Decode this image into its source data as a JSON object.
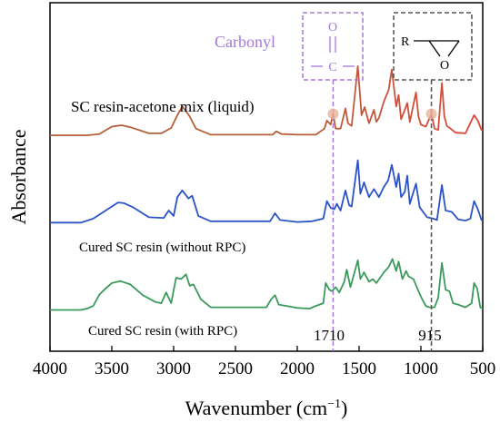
{
  "chart_data": {
    "type": "line",
    "xlabel": "Wavenumber (cm",
    "xlabel_sup": "−1",
    "xlabel_close": ")",
    "ylabel": "Absorbance",
    "xlim": [
      4000,
      500
    ],
    "x_ticks": [
      "4000",
      "3500",
      "3000",
      "2500",
      "2000",
      "1500",
      "1000",
      "500"
    ],
    "grid": false,
    "series": [
      {
        "name": "SC resin-acetone mix (liquid)",
        "color": "#b45f3a",
        "color_end": "#e0463b",
        "offset": 2.6,
        "points": [
          [
            4000,
            0.02
          ],
          [
            3700,
            0.02
          ],
          [
            3600,
            0.04
          ],
          [
            3500,
            0.15
          ],
          [
            3420,
            0.17
          ],
          [
            3350,
            0.14
          ],
          [
            3200,
            0.05
          ],
          [
            3100,
            0.05
          ],
          [
            3020,
            0.13
          ],
          [
            2970,
            0.32
          ],
          [
            2930,
            0.45
          ],
          [
            2900,
            0.38
          ],
          [
            2870,
            0.3
          ],
          [
            2820,
            0.12
          ],
          [
            2700,
            0.03
          ],
          [
            2200,
            0.03
          ],
          [
            2170,
            0.08
          ],
          [
            2130,
            0.04
          ],
          [
            2000,
            0.03
          ],
          [
            1850,
            0.03
          ],
          [
            1780,
            0.12
          ],
          [
            1760,
            0.24
          ],
          [
            1730,
            0.18
          ],
          [
            1710,
            0.34
          ],
          [
            1690,
            0.12
          ],
          [
            1650,
            0.12
          ],
          [
            1610,
            0.42
          ],
          [
            1590,
            0.2
          ],
          [
            1560,
            0.16
          ],
          [
            1510,
            1.05
          ],
          [
            1480,
            0.32
          ],
          [
            1455,
            0.44
          ],
          [
            1420,
            0.2
          ],
          [
            1380,
            0.4
          ],
          [
            1360,
            0.22
          ],
          [
            1340,
            0.28
          ],
          [
            1300,
            0.52
          ],
          [
            1260,
            0.7
          ],
          [
            1235,
            1.0
          ],
          [
            1200,
            0.45
          ],
          [
            1180,
            0.62
          ],
          [
            1160,
            0.26
          ],
          [
            1130,
            0.4
          ],
          [
            1110,
            0.5
          ],
          [
            1090,
            0.22
          ],
          [
            1040,
            0.66
          ],
          [
            1020,
            0.3
          ],
          [
            1000,
            0.18
          ],
          [
            960,
            0.15
          ],
          [
            915,
            0.34
          ],
          [
            890,
            0.12
          ],
          [
            860,
            0.1
          ],
          [
            830,
            0.8
          ],
          [
            810,
            0.3
          ],
          [
            790,
            0.16
          ],
          [
            760,
            0.12
          ],
          [
            720,
            0.06
          ],
          [
            640,
            0.05
          ],
          [
            570,
            0.32
          ],
          [
            540,
            0.24
          ],
          [
            510,
            0.1
          ],
          [
            500,
            0.1
          ]
        ]
      },
      {
        "name": "Cured SC resin (without RPC)",
        "color": "#2b53c9",
        "offset": 1.3,
        "points": [
          [
            4000,
            0.02
          ],
          [
            3750,
            0.02
          ],
          [
            3650,
            0.08
          ],
          [
            3550,
            0.2
          ],
          [
            3450,
            0.32
          ],
          [
            3400,
            0.31
          ],
          [
            3330,
            0.25
          ],
          [
            3200,
            0.1
          ],
          [
            3080,
            0.09
          ],
          [
            3040,
            0.2
          ],
          [
            3000,
            0.12
          ],
          [
            2970,
            0.4
          ],
          [
            2930,
            0.5
          ],
          [
            2880,
            0.38
          ],
          [
            2850,
            0.42
          ],
          [
            2800,
            0.12
          ],
          [
            2700,
            0.04
          ],
          [
            2220,
            0.04
          ],
          [
            2180,
            0.16
          ],
          [
            2140,
            0.06
          ],
          [
            2000,
            0.03
          ],
          [
            1880,
            0.04
          ],
          [
            1790,
            0.08
          ],
          [
            1760,
            0.34
          ],
          [
            1730,
            0.24
          ],
          [
            1700,
            0.22
          ],
          [
            1680,
            0.3
          ],
          [
            1650,
            0.2
          ],
          [
            1610,
            0.5
          ],
          [
            1580,
            0.28
          ],
          [
            1560,
            0.26
          ],
          [
            1510,
            0.95
          ],
          [
            1490,
            0.45
          ],
          [
            1460,
            0.62
          ],
          [
            1420,
            0.4
          ],
          [
            1380,
            0.52
          ],
          [
            1340,
            0.4
          ],
          [
            1300,
            0.55
          ],
          [
            1265,
            0.65
          ],
          [
            1235,
            0.88
          ],
          [
            1200,
            0.55
          ],
          [
            1180,
            0.75
          ],
          [
            1160,
            0.4
          ],
          [
            1130,
            0.48
          ],
          [
            1110,
            0.72
          ],
          [
            1090,
            0.3
          ],
          [
            1040,
            0.6
          ],
          [
            1010,
            0.25
          ],
          [
            950,
            0.1
          ],
          [
            900,
            0.08
          ],
          [
            870,
            0.06
          ],
          [
            830,
            0.58
          ],
          [
            800,
            0.2
          ],
          [
            750,
            0.18
          ],
          [
            700,
            0.07
          ],
          [
            640,
            0.05
          ],
          [
            600,
            0.08
          ],
          [
            570,
            0.34
          ],
          [
            540,
            0.22
          ],
          [
            510,
            0.06
          ],
          [
            500,
            0.06
          ]
        ]
      },
      {
        "name": "Cured SC resin (with RPC)",
        "color": "#3a9a5c",
        "offset": 0.0,
        "points": [
          [
            4000,
            0.02
          ],
          [
            3750,
            0.02
          ],
          [
            3700,
            0.04
          ],
          [
            3650,
            0.08
          ],
          [
            3600,
            0.25
          ],
          [
            3550,
            0.34
          ],
          [
            3500,
            0.42
          ],
          [
            3430,
            0.45
          ],
          [
            3350,
            0.4
          ],
          [
            3250,
            0.24
          ],
          [
            3150,
            0.14
          ],
          [
            3100,
            0.12
          ],
          [
            3060,
            0.28
          ],
          [
            3020,
            0.12
          ],
          [
            2980,
            0.5
          ],
          [
            2940,
            0.48
          ],
          [
            2900,
            0.55
          ],
          [
            2870,
            0.38
          ],
          [
            2840,
            0.4
          ],
          [
            2780,
            0.18
          ],
          [
            2700,
            0.06
          ],
          [
            2250,
            0.06
          ],
          [
            2210,
            0.18
          ],
          [
            2180,
            0.24
          ],
          [
            2150,
            0.1
          ],
          [
            2000,
            0.05
          ],
          [
            1900,
            0.04
          ],
          [
            1850,
            0.08
          ],
          [
            1790,
            0.12
          ],
          [
            1770,
            0.42
          ],
          [
            1740,
            0.32
          ],
          [
            1720,
            0.3
          ],
          [
            1690,
            0.36
          ],
          [
            1660,
            0.28
          ],
          [
            1620,
            0.44
          ],
          [
            1600,
            0.62
          ],
          [
            1570,
            0.36
          ],
          [
            1510,
            0.76
          ],
          [
            1490,
            0.48
          ],
          [
            1460,
            0.58
          ],
          [
            1420,
            0.44
          ],
          [
            1390,
            0.48
          ],
          [
            1360,
            0.42
          ],
          [
            1300,
            0.58
          ],
          [
            1260,
            0.66
          ],
          [
            1230,
            0.78
          ],
          [
            1200,
            0.6
          ],
          [
            1180,
            0.74
          ],
          [
            1150,
            0.48
          ],
          [
            1120,
            0.6
          ],
          [
            1100,
            0.52
          ],
          [
            1060,
            0.48
          ],
          [
            1020,
            0.3
          ],
          [
            990,
            0.18
          ],
          [
            960,
            0.08
          ],
          [
            930,
            0.06
          ],
          [
            890,
            0.06
          ],
          [
            860,
            0.2
          ],
          [
            830,
            0.72
          ],
          [
            800,
            0.32
          ],
          [
            770,
            0.3
          ],
          [
            740,
            0.12
          ],
          [
            700,
            0.1
          ],
          [
            640,
            0.06
          ],
          [
            590,
            0.12
          ],
          [
            570,
            0.42
          ],
          [
            545,
            0.34
          ],
          [
            520,
            0.06
          ],
          [
            500,
            0.04
          ]
        ]
      }
    ],
    "annotations": {
      "carbonyl_title": "Carbonyl",
      "carbonyl_struct_o": "O",
      "carbonyl_struct_c": "C",
      "epoxy_struct_r": "R",
      "epoxy_struct_o": "O",
      "peak_1710": "1710",
      "peak_915": "915",
      "carbonyl_color": "#a37ad8",
      "epoxy_color": "#555555",
      "marker_color": "#e8b39a"
    }
  }
}
